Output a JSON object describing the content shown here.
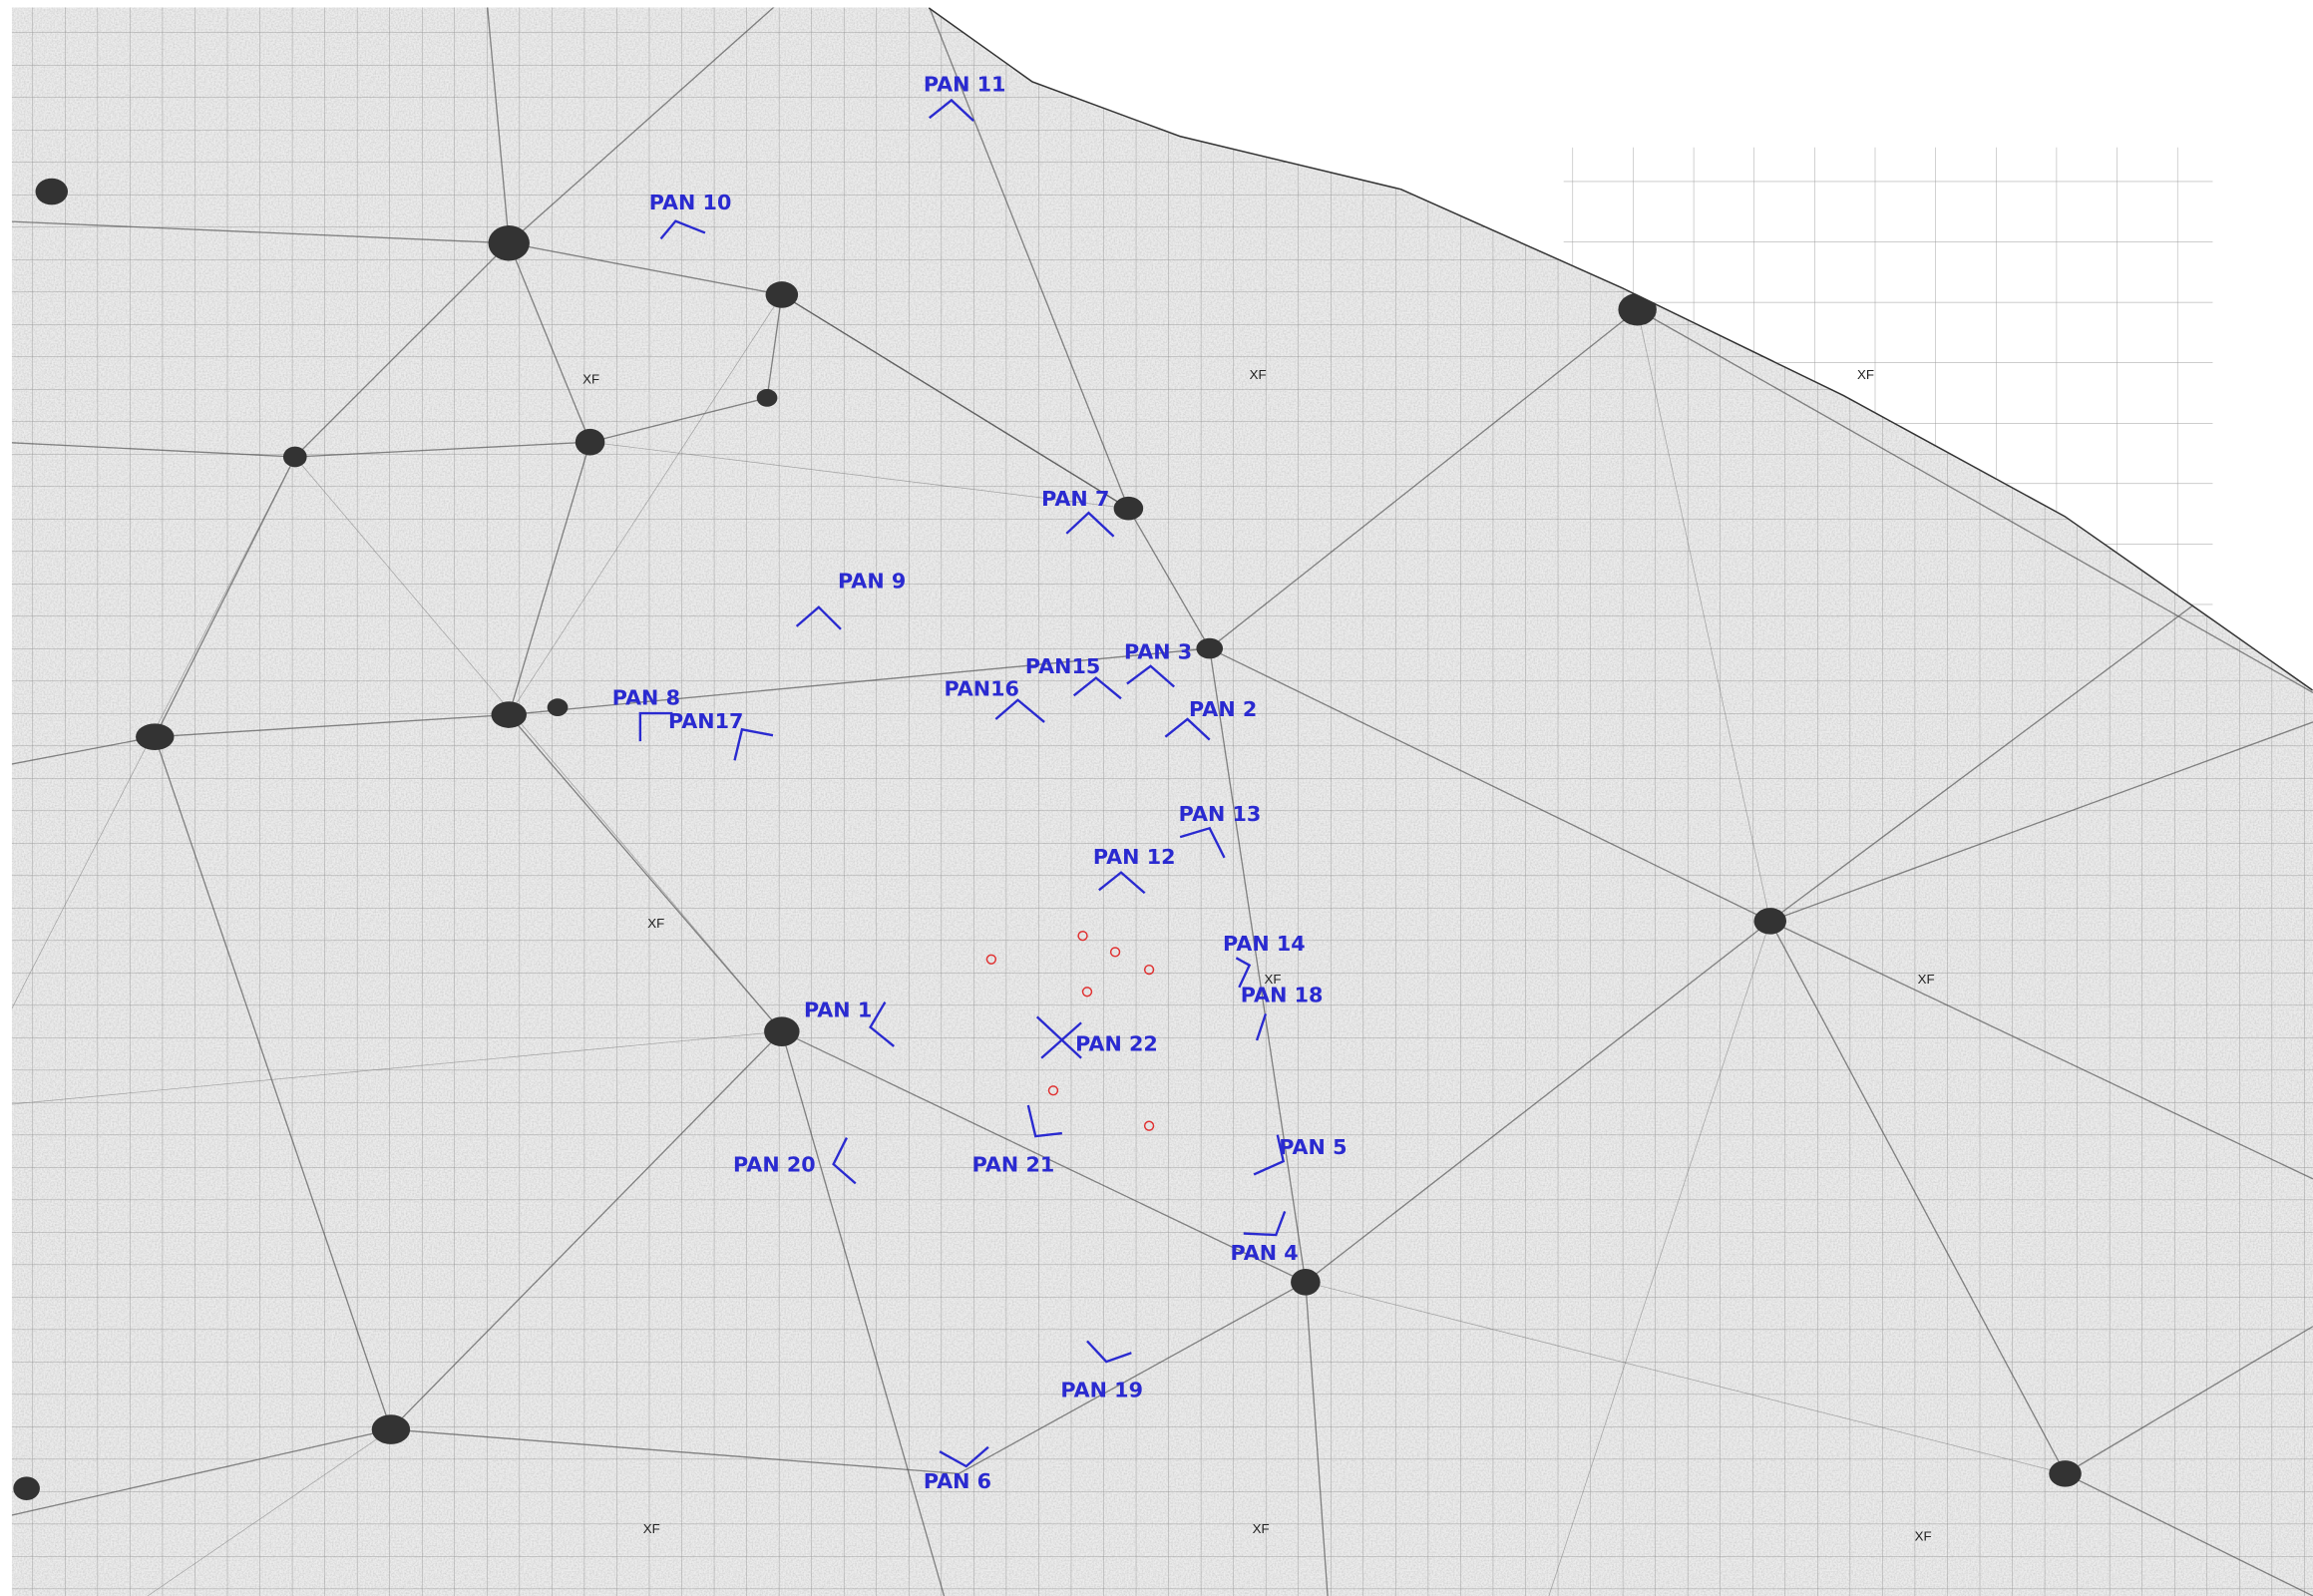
{
  "map": {
    "viewpoint_labels": [
      "PAN 11",
      "PAN 10",
      "PAN 7",
      "PAN 9",
      "PAN15",
      "PAN 3",
      "PAN16",
      "PAN 2",
      "PAN 8",
      "PAN17",
      "PAN 13",
      "PAN 12",
      "PAN 14",
      "PAN 18",
      "PAN 1",
      "PAN 22",
      "PAN 20",
      "PAN 21",
      "PAN 5",
      "PAN 4",
      "PAN 19",
      "PAN 6"
    ],
    "sheet_labels": [
      "XF",
      "XF",
      "XF",
      "XF",
      "XF",
      "XF",
      "XF",
      "XF",
      "XF"
    ]
  }
}
